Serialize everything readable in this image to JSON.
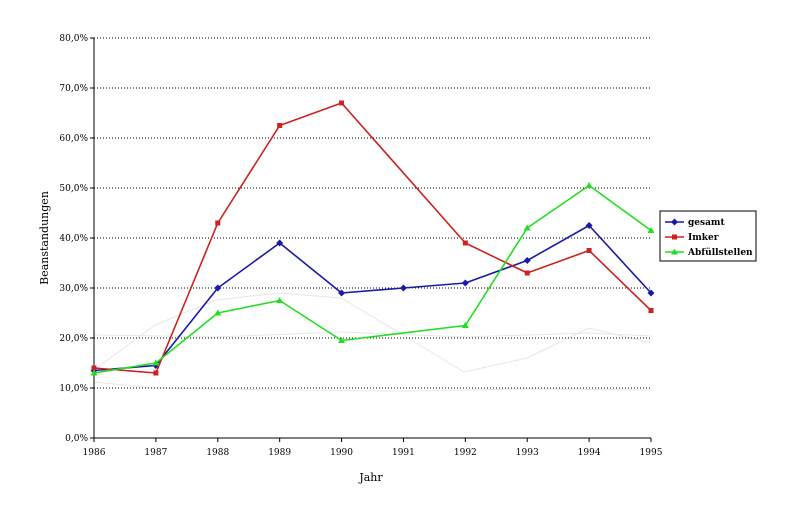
{
  "chart_data": {
    "type": "line",
    "title": "",
    "xlabel": "Jahr",
    "ylabel": "Beanstandungen",
    "x": [
      "1986",
      "1987",
      "1988",
      "1989",
      "1990",
      "1991",
      "1992",
      "1993",
      "1994",
      "1995"
    ],
    "ylim": [
      0,
      80
    ],
    "y_ticks": [
      {
        "value": 0,
        "label": "0,0%"
      },
      {
        "value": 10,
        "label": "10,0%"
      },
      {
        "value": 20,
        "label": "20,0%"
      },
      {
        "value": 30,
        "label": "30,0%"
      },
      {
        "value": 40,
        "label": "40,0%"
      },
      {
        "value": 50,
        "label": "50,0%"
      },
      {
        "value": 60,
        "label": "60,0%"
      },
      {
        "value": 70,
        "label": "70,0%"
      },
      {
        "value": 80,
        "label": "80,0%"
      }
    ],
    "grid": "horizontal dotted",
    "legend_position": "right",
    "series": [
      {
        "name": "gesamt",
        "color": "#1a1aa6",
        "marker": "diamond",
        "values": [
          13.5,
          14.5,
          30,
          39,
          29,
          30,
          31,
          35.5,
          42.5,
          29
        ]
      },
      {
        "name": "Imker",
        "color": "#cc2222",
        "marker": "square",
        "values": [
          14,
          13,
          43,
          62.5,
          67,
          null,
          39,
          33,
          37.5,
          25.5
        ]
      },
      {
        "name": "Abfüllstellen",
        "color": "#22dd22",
        "marker": "triangle",
        "values": [
          13,
          15,
          25,
          27.5,
          19.5,
          null,
          22.5,
          42,
          50.5,
          41.5
        ]
      }
    ]
  }
}
